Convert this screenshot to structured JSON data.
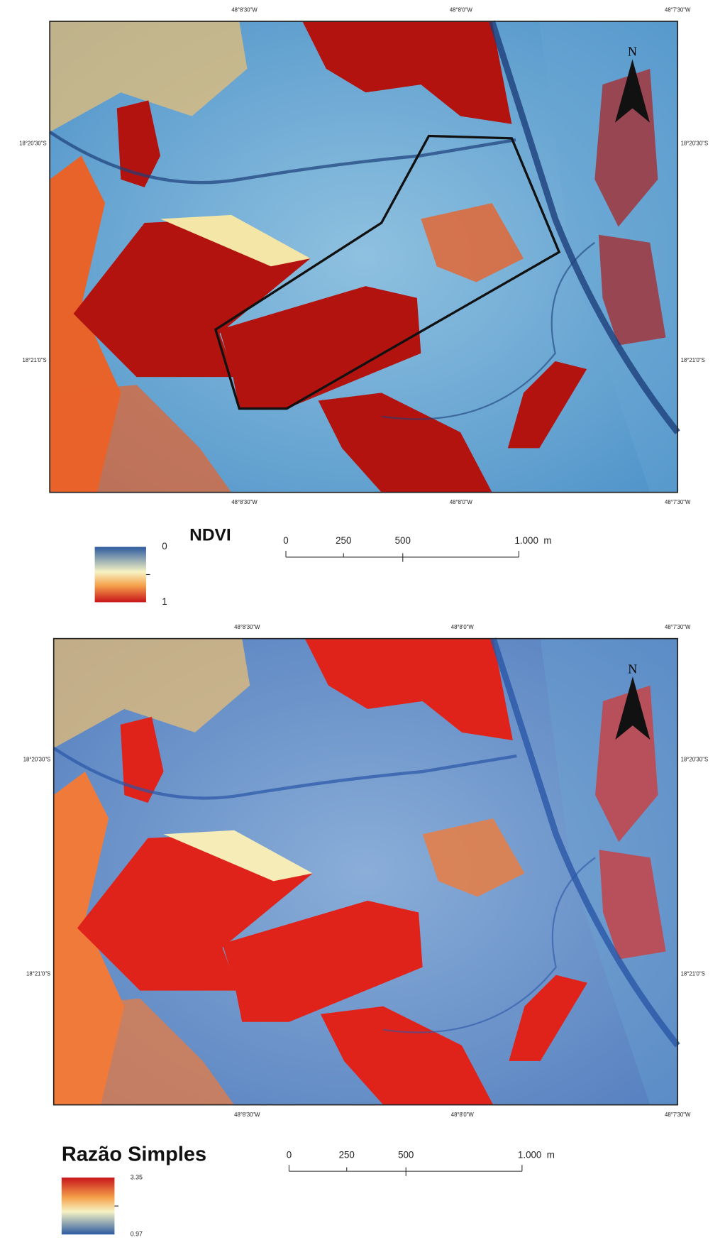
{
  "maps": [
    {
      "top_labels": [
        "48°8'30\"W",
        "48°8'0\"W",
        "48°7'30\"W"
      ],
      "bottom_labels": [
        "48°8'30\"W",
        "48°8'0\"W",
        "48°7'30\"W"
      ],
      "left_labels": [
        "18°20'30\"S",
        "18°21'0\"S"
      ],
      "right_labels": [
        "18°20'30\"S",
        "18°21'0\"S"
      ],
      "north": "N",
      "legend": {
        "title": "NDVI",
        "top": "0",
        "bottom": "1"
      },
      "scale_bar": [
        "0",
        "250",
        "500",
        "1.000  m"
      ]
    },
    {
      "top_labels": [
        "48°8'30\"W",
        "48°8'0\"W",
        "48°7'30\"W"
      ],
      "bottom_labels": [
        "48°8'30\"W",
        "48°8'0\"W",
        "48°7'30\"W"
      ],
      "left_labels": [
        "18°20'30\"S",
        "18°21'0\"S"
      ],
      "right_labels": [
        "18°20'30\"S",
        "18°21'0\"S"
      ],
      "north": "N",
      "legend": {
        "title": "Razão Simples",
        "top": "3.35",
        "bottom": "0.97"
      },
      "scale_bar": [
        "0",
        "250",
        "500",
        "1.000  m"
      ]
    }
  ]
}
